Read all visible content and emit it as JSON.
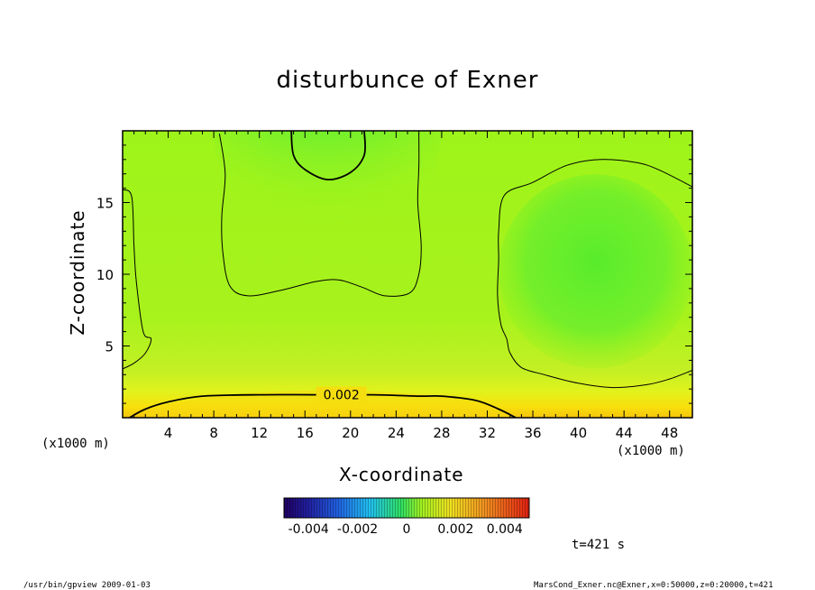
{
  "chart_data": {
    "type": "heatmap",
    "title": "disturbunce of Exner",
    "xlabel": "X-coordinate",
    "ylabel": "Z-coordinate",
    "x_unit": "(x1000 m)",
    "y_unit": "(x1000 m)",
    "xlim": [
      0,
      50
    ],
    "ylim": [
      0,
      20
    ],
    "x_ticks": [
      4,
      8,
      12,
      16,
      20,
      24,
      28,
      32,
      36,
      40,
      44,
      48
    ],
    "y_ticks": [
      5,
      10,
      15
    ],
    "contour_label": "0.002",
    "colorbar": {
      "min": -0.005,
      "max": 0.005,
      "tick_labels": [
        "-0.004",
        "-0.002",
        "0",
        "0.002",
        "0.004"
      ],
      "tick_values": [
        -0.004,
        -0.002,
        0,
        0.002,
        0.004
      ]
    },
    "contours": [
      {
        "level": 0.002,
        "label": "0.002",
        "points": [
          [
            0.6,
            0
          ],
          [
            2,
            0.6
          ],
          [
            4,
            1.1
          ],
          [
            7,
            1.5
          ],
          [
            12,
            1.6
          ],
          [
            17,
            1.6
          ],
          [
            22,
            1.6
          ],
          [
            26,
            1.5
          ],
          [
            28,
            1.5
          ],
          [
            31,
            1.2
          ],
          [
            33,
            0.6
          ],
          [
            34.5,
            0
          ]
        ]
      },
      {
        "level": 0,
        "points": [
          [
            0,
            15.9
          ],
          [
            0.8,
            15.4
          ],
          [
            1,
            12
          ],
          [
            1.2,
            9.5
          ],
          [
            1.8,
            6
          ],
          [
            2.5,
            5.5
          ],
          [
            2,
            4.5
          ],
          [
            1,
            3.8
          ],
          [
            0,
            3.4
          ]
        ]
      },
      {
        "level": 0,
        "points": [
          [
            8.5,
            19.8
          ],
          [
            9,
            17
          ],
          [
            8.7,
            14
          ],
          [
            8.8,
            11.5
          ],
          [
            9.4,
            9.2
          ],
          [
            11,
            8.5
          ],
          [
            14,
            8.9
          ],
          [
            17,
            9.5
          ],
          [
            19,
            9.6
          ],
          [
            21,
            9.1
          ],
          [
            23,
            8.5
          ],
          [
            25.2,
            8.7
          ],
          [
            26,
            10
          ],
          [
            26.2,
            12
          ],
          [
            25.9,
            15
          ],
          [
            26,
            17.5
          ],
          [
            26,
            19.8
          ]
        ]
      },
      {
        "level": 0,
        "points": [
          [
            50,
            16.1
          ],
          [
            47,
            17.3
          ],
          [
            45,
            17.8
          ],
          [
            42,
            18
          ],
          [
            39,
            17.6
          ],
          [
            36,
            16.4
          ],
          [
            33.5,
            15.5
          ],
          [
            33,
            13
          ],
          [
            33,
            11
          ],
          [
            32.9,
            8.5
          ],
          [
            33.2,
            6.5
          ],
          [
            33.7,
            5.5
          ],
          [
            34,
            4.5
          ],
          [
            35,
            3.5
          ],
          [
            37,
            3.0
          ],
          [
            40,
            2.4
          ],
          [
            43,
            2.1
          ],
          [
            46,
            2.3
          ],
          [
            48,
            2.7
          ],
          [
            50,
            3.3
          ]
        ]
      },
      {
        "level": -0.001,
        "points": [
          [
            14.8,
            20
          ],
          [
            15,
            18.3
          ],
          [
            16,
            17.3
          ],
          [
            18,
            16.6
          ],
          [
            20,
            17.1
          ],
          [
            21.2,
            18.3
          ],
          [
            21.2,
            20
          ]
        ]
      }
    ]
  },
  "time_label": "t=421 s",
  "footer": {
    "left": "/usr/bin/gpview   2009-01-03",
    "right": "MarsCond_Exner.nc@Exner,x=0:50000,z=0:20000,t=421"
  }
}
